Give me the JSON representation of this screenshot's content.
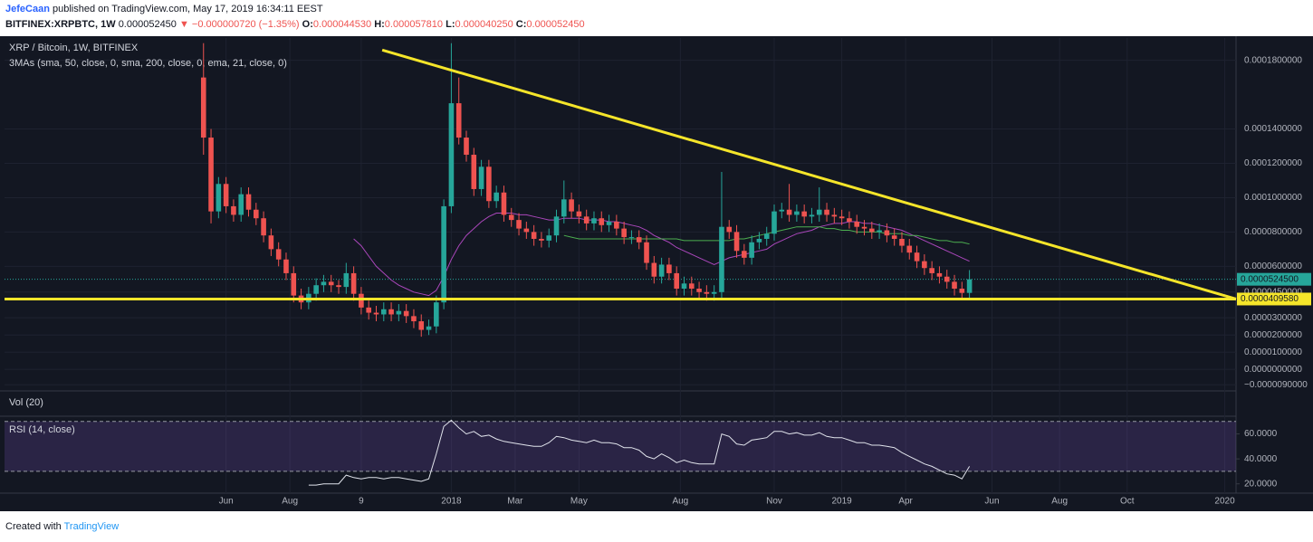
{
  "header": {
    "author": "JefeCaan",
    "byline": "published on TradingView.com, May 17, 2019 16:34:11 EEST",
    "symbol": "BITFINEX:XRPBTC, 1W",
    "last": "0.000052450",
    "change": "▼ −0.000000720 (−1.35%)",
    "ohlc": [
      {
        "key": "O:",
        "value": "0.000044530"
      },
      {
        "key": "H:",
        "value": "0.000057810"
      },
      {
        "key": "L:",
        "value": "0.000040250"
      },
      {
        "key": "C:",
        "value": "0.000052450"
      }
    ]
  },
  "footer": {
    "text": "Created with",
    "brand": "TradingView"
  },
  "chart_data": {
    "type": "candlestick",
    "title": "XRP / Bitcoin, 1W, BITFINEX",
    "ma_legend": "3MAs (sma, 50, close, 0, sma, 200, close, 0, ema, 21, close, 0)",
    "up_color": "#26a69a",
    "down_color": "#ef5350",
    "grid": true,
    "xlim": [
      -26.5,
      137.5
    ],
    "xticks": [
      {
        "value": 3,
        "label": "Jun"
      },
      {
        "value": 11.5,
        "label": "Aug"
      },
      {
        "value": 21,
        "label": "9"
      },
      {
        "value": 33,
        "label": "2018"
      },
      {
        "value": 41.5,
        "label": "Mar"
      },
      {
        "value": 50,
        "label": "May"
      },
      {
        "value": 63.5,
        "label": "Aug"
      },
      {
        "value": 76,
        "label": "Nov"
      },
      {
        "value": 85,
        "label": "2019"
      },
      {
        "value": 93.5,
        "label": "Apr"
      },
      {
        "value": 105,
        "label": "Jun"
      },
      {
        "value": 114,
        "label": "Aug"
      },
      {
        "value": 123,
        "label": "Oct"
      },
      {
        "value": 136,
        "label": "2020"
      }
    ],
    "ylim": [
      -1.15e-05,
      0.000193
    ],
    "yticks": [
      {
        "value": 0.00018,
        "label": "0.0001800000"
      },
      {
        "value": 0.00014,
        "label": "0.0001400000"
      },
      {
        "value": 0.00012,
        "label": "0.0001200000"
      },
      {
        "value": 0.0001,
        "label": "0.0001000000"
      },
      {
        "value": 8e-05,
        "label": "0.0000800000"
      },
      {
        "value": 6e-05,
        "label": "0.0000600000"
      },
      {
        "value": 4.5e-05,
        "label": "0.0000450000"
      },
      {
        "value": 3e-05,
        "label": "0.0000300000"
      },
      {
        "value": 2e-05,
        "label": "0.0000200000"
      },
      {
        "value": 1e-05,
        "label": "0.0000100000"
      },
      {
        "value": 0,
        "label": "0.0000000000"
      },
      {
        "value": -9e-06,
        "label": "−0.0000090000"
      }
    ],
    "price_labels": [
      {
        "value": 5.245e-05,
        "label": "0.0000524500",
        "color": "#26a69a"
      },
      {
        "value": 4.0958e-05,
        "label": "0.0000409580",
        "color": "#f5e52a"
      }
    ],
    "trendlines": [
      {
        "color": "#f5e52a",
        "x": [
          23.8,
          137.5
        ],
        "y": [
          0.000186,
          4.0958e-05
        ]
      },
      {
        "color": "#f5e52a",
        "x": [
          -26.5,
          137.5
        ],
        "y": [
          4.0958e-05,
          4.0958e-05
        ]
      }
    ],
    "ohlc": [
      [
        0.00017,
        0.00019,
        0.000125,
        0.000135
      ],
      [
        0.000135,
        0.00014,
        8.5e-05,
        9.2e-05
      ],
      [
        9.2e-05,
        0.000112,
        8.8e-05,
        0.000108
      ],
      [
        0.000108,
        0.000112,
        9.1e-05,
        9.5e-05
      ],
      [
        9.5e-05,
        9.9e-05,
        8.6e-05,
        9e-05
      ],
      [
        9e-05,
        0.000106,
        8.6e-05,
        0.000102
      ],
      [
        0.000102,
        0.000106,
        8.9e-05,
        9.3e-05
      ],
      [
        9.3e-05,
        9.7e-05,
        8.4e-05,
        8.8e-05
      ],
      [
        8.8e-05,
        9.2e-05,
        7.4e-05,
        7.8e-05
      ],
      [
        7.8e-05,
        8.2e-05,
        6.6e-05,
        7e-05
      ],
      [
        7e-05,
        7.4e-05,
        6e-05,
        6.4e-05
      ],
      [
        6.4e-05,
        6.8e-05,
        5.2e-05,
        5.6e-05
      ],
      [
        5.6e-05,
        6e-05,
        3.9e-05,
        4.3e-05
      ],
      [
        4.3e-05,
        4.7e-05,
        3.5e-05,
        3.9e-05
      ],
      [
        3.9e-05,
        4.8e-05,
        3.5e-05,
        4.4e-05
      ],
      [
        4.4e-05,
        5.3e-05,
        4e-05,
        4.9e-05
      ],
      [
        4.9e-05,
        5.5e-05,
        4.5e-05,
        5.1e-05
      ],
      [
        5.1e-05,
        5.5e-05,
        4.5e-05,
        4.9e-05
      ],
      [
        4.9e-05,
        5.2e-05,
        4.4e-05,
        4.8e-05
      ],
      [
        4.8e-05,
        6.2e-05,
        4.4e-05,
        5.6e-05
      ],
      [
        5.6e-05,
        6e-05,
        4e-05,
        4.4e-05
      ],
      [
        4.4e-05,
        4.8e-05,
        3.2e-05,
        3.6e-05
      ],
      [
        3.6e-05,
        4e-05,
        2.9e-05,
        3.3e-05
      ],
      [
        3.3e-05,
        3.7e-05,
        2.8e-05,
        3.2e-05
      ],
      [
        3.2e-05,
        3.9e-05,
        2.8e-05,
        3.5e-05
      ],
      [
        3.5e-05,
        3.9e-05,
        2.8e-05,
        3.2e-05
      ],
      [
        3.2e-05,
        3.8e-05,
        2.8e-05,
        3.4e-05
      ],
      [
        3.4e-05,
        3.8e-05,
        2.7e-05,
        3.1e-05
      ],
      [
        3.1e-05,
        3.5e-05,
        2.4e-05,
        2.8e-05
      ],
      [
        2.8e-05,
        3.2e-05,
        1.9e-05,
        2.3e-05
      ],
      [
        2.3e-05,
        2.9e-05,
        2e-05,
        2.5e-05
      ],
      [
        2.5e-05,
        4.3e-05,
        2.1e-05,
        3.9e-05
      ],
      [
        3.9e-05,
        9.9e-05,
        3.5e-05,
        9.5e-05
      ],
      [
        9.5e-05,
        0.00019,
        9.1e-05,
        0.000155
      ],
      [
        0.000155,
        0.00017,
        0.000131,
        0.000135
      ],
      [
        0.000135,
        0.000139,
        0.000121,
        0.000125
      ],
      [
        0.000125,
        0.000129,
        0.000101,
        0.000105
      ],
      [
        0.000105,
        0.000122,
        0.000101,
        0.000118
      ],
      [
        0.000118,
        0.000122,
        9.4e-05,
        9.8e-05
      ],
      [
        9.8e-05,
        0.000107,
        9.4e-05,
        0.000103
      ],
      [
        0.000103,
        0.000107,
        8.6e-05,
        9e-05
      ],
      [
        9e-05,
        9.4e-05,
        8.3e-05,
        8.7e-05
      ],
      [
        8.7e-05,
        9.1e-05,
        7.8e-05,
        8.2e-05
      ],
      [
        8.2e-05,
        8.6e-05,
        7.6e-05,
        8e-05
      ],
      [
        8e-05,
        8.4e-05,
        7.2e-05,
        7.6e-05
      ],
      [
        7.6e-05,
        8e-05,
        7.1e-05,
        7.5e-05
      ],
      [
        7.5e-05,
        8.2e-05,
        7.1e-05,
        7.8e-05
      ],
      [
        7.8e-05,
        9.3e-05,
        7.4e-05,
        8.9e-05
      ],
      [
        8.9e-05,
        0.00011,
        8.5e-05,
        9.9e-05
      ],
      [
        9.9e-05,
        0.000103,
        8.8e-05,
        9.2e-05
      ],
      [
        9.2e-05,
        9.6e-05,
        8.5e-05,
        8.9e-05
      ],
      [
        8.9e-05,
        9.3e-05,
        8.1e-05,
        8.5e-05
      ],
      [
        8.5e-05,
        9.2e-05,
        8.1e-05,
        8.8e-05
      ],
      [
        8.8e-05,
        9.2e-05,
        8e-05,
        8.4e-05
      ],
      [
        8.4e-05,
        9e-05,
        8e-05,
        8.6e-05
      ],
      [
        8.6e-05,
        9e-05,
        7.8e-05,
        8.2e-05
      ],
      [
        8.2e-05,
        8.6e-05,
        7.3e-05,
        7.7e-05
      ],
      [
        7.7e-05,
        8.1e-05,
        7.3e-05,
        7.7e-05
      ],
      [
        7.7e-05,
        8.1e-05,
        7e-05,
        7.4e-05
      ],
      [
        7.4e-05,
        7.8e-05,
        5.8e-05,
        6.2e-05
      ],
      [
        6.2e-05,
        6.6e-05,
        5e-05,
        5.4e-05
      ],
      [
        5.4e-05,
        6.5e-05,
        5e-05,
        6.1e-05
      ],
      [
        6.1e-05,
        6.5e-05,
        5.2e-05,
        5.6e-05
      ],
      [
        5.6e-05,
        6e-05,
        4.3e-05,
        4.7e-05
      ],
      [
        4.7e-05,
        5.4e-05,
        4.3e-05,
        5e-05
      ],
      [
        5e-05,
        5.4e-05,
        4.3e-05,
        4.7e-05
      ],
      [
        4.7e-05,
        5.1e-05,
        4.1e-05,
        4.5e-05
      ],
      [
        4.5e-05,
        4.9e-05,
        4e-05,
        4.4e-05
      ],
      [
        4.4e-05,
        4.9e-05,
        4e-05,
        4.5e-05
      ],
      [
        4.5e-05,
        0.000115,
        4.1e-05,
        8.3e-05
      ],
      [
        8.3e-05,
        8.7e-05,
        7.6e-05,
        8e-05
      ],
      [
        8e-05,
        8.4e-05,
        6.5e-05,
        6.9e-05
      ],
      [
        6.9e-05,
        7.3e-05,
        6.1e-05,
        6.5e-05
      ],
      [
        6.5e-05,
        7.8e-05,
        6.1e-05,
        7.4e-05
      ],
      [
        7.4e-05,
        8e-05,
        7e-05,
        7.6e-05
      ],
      [
        7.6e-05,
        8.3e-05,
        7.2e-05,
        7.9e-05
      ],
      [
        7.9e-05,
        9.6e-05,
        7.5e-05,
        9.2e-05
      ],
      [
        9.2e-05,
        9.7e-05,
        8.8e-05,
        9.3e-05
      ],
      [
        9.3e-05,
        0.000108,
        8.6e-05,
        9e-05
      ],
      [
        9e-05,
        9.6e-05,
        8.6e-05,
        9.2e-05
      ],
      [
        9.2e-05,
        9.6e-05,
        8.5e-05,
        8.9e-05
      ],
      [
        8.9e-05,
        9.4e-05,
        8.5e-05,
        9e-05
      ],
      [
        9e-05,
        0.000106,
        8.6e-05,
        9.3e-05
      ],
      [
        9.3e-05,
        9.7e-05,
        8.6e-05,
        9e-05
      ],
      [
        9e-05,
        9.4e-05,
        8.5e-05,
        8.9e-05
      ],
      [
        8.9e-05,
        9.3e-05,
        8.4e-05,
        8.8e-05
      ],
      [
        8.8e-05,
        9.2e-05,
        8.2e-05,
        8.6e-05
      ],
      [
        8.6e-05,
        9e-05,
        7.9e-05,
        8.3e-05
      ],
      [
        8.3e-05,
        8.7e-05,
        7.8e-05,
        8.2e-05
      ],
      [
        8.2e-05,
        8.6e-05,
        7.6e-05,
        8e-05
      ],
      [
        8e-05,
        8.5e-05,
        7.6e-05,
        8.1e-05
      ],
      [
        8.1e-05,
        8.5e-05,
        7.4e-05,
        7.8e-05
      ],
      [
        7.8e-05,
        8.2e-05,
        7.2e-05,
        7.6e-05
      ],
      [
        7.6e-05,
        8e-05,
        6.8e-05,
        7.2e-05
      ],
      [
        7.2e-05,
        7.6e-05,
        6.4e-05,
        6.8e-05
      ],
      [
        6.8e-05,
        7.2e-05,
        5.9e-05,
        6.3e-05
      ],
      [
        6.3e-05,
        6.7e-05,
        5.5e-05,
        5.9e-05
      ],
      [
        5.9e-05,
        6.3e-05,
        5.2e-05,
        5.6e-05
      ],
      [
        5.6e-05,
        6e-05,
        5e-05,
        5.4e-05
      ],
      [
        5.4e-05,
        5.8e-05,
        4.7e-05,
        5.1e-05
      ],
      [
        5.1e-05,
        5.5e-05,
        4.3e-05,
        4.7e-05
      ],
      [
        4.7e-05,
        5.1e-05,
        4.1e-05,
        4.453e-05
      ],
      [
        4.453e-05,
        5.781e-05,
        4.025e-05,
        5.245e-05
      ]
    ],
    "indicators": [
      {
        "color": "#ab47bc",
        "values": [
          null,
          null,
          null,
          null,
          null,
          null,
          null,
          null,
          null,
          null,
          null,
          null,
          null,
          null,
          null,
          null,
          null,
          null,
          null,
          null,
          7.6e-05,
          7.2e-05,
          6.6e-05,
          6e-05,
          5.6e-05,
          5.2e-05,
          4.9e-05,
          4.7e-05,
          4.5e-05,
          4.4e-05,
          4.3e-05,
          4.6e-05,
          5.4e-05,
          6.4e-05,
          7.2e-05,
          7.8e-05,
          8.2e-05,
          8.6e-05,
          8.9e-05,
          9.1e-05,
          9.1e-05,
          9.1e-05,
          9e-05,
          9e-05,
          8.9e-05,
          8.8e-05,
          8.7e-05,
          8.7e-05,
          8.8e-05,
          8.8e-05,
          8.8e-05,
          8.7e-05,
          8.7e-05,
          8.7e-05,
          8.6e-05,
          8.6e-05,
          8.5e-05,
          8.4e-05,
          8.3e-05,
          8.1e-05,
          7.8e-05,
          7.6e-05,
          7.4e-05,
          7.1e-05,
          6.9e-05,
          6.7e-05,
          6.5e-05,
          6.3e-05,
          6.1e-05,
          6.3e-05,
          6.5e-05,
          6.6e-05,
          6.7e-05,
          6.8e-05,
          6.9e-05,
          7e-05,
          7.3e-05,
          7.5e-05,
          7.7e-05,
          7.9e-05,
          8e-05,
          8.1e-05,
          8.3e-05,
          8.4e-05,
          8.5e-05,
          8.5e-05,
          8.6e-05,
          8.6e-05,
          8.5e-05,
          8.5e-05,
          8.4e-05,
          8.3e-05,
          8.2e-05,
          8.1e-05,
          7.9e-05,
          7.7e-05,
          7.5e-05,
          7.3e-05,
          7.1e-05,
          6.9e-05,
          6.7e-05,
          6.5e-05,
          6.3e-05
        ]
      },
      {
        "color": "#4caf50",
        "values": [
          null,
          null,
          null,
          null,
          null,
          null,
          null,
          null,
          null,
          null,
          null,
          null,
          null,
          null,
          null,
          null,
          null,
          null,
          null,
          null,
          null,
          null,
          null,
          null,
          null,
          null,
          null,
          null,
          null,
          null,
          null,
          null,
          null,
          null,
          null,
          null,
          null,
          null,
          null,
          null,
          null,
          null,
          null,
          null,
          null,
          null,
          null,
          null,
          7.8e-05,
          7.7e-05,
          7.6e-05,
          7.6e-05,
          7.6e-05,
          7.6e-05,
          7.6e-05,
          7.6e-05,
          7.6e-05,
          7.6e-05,
          7.6e-05,
          7.6e-05,
          7.6e-05,
          7.6e-05,
          7.6e-05,
          7.6e-05,
          7.5e-05,
          7.5e-05,
          7.5e-05,
          7.5e-05,
          7.5e-05,
          7.5e-05,
          7.5e-05,
          7.6e-05,
          7.6e-05,
          7.7e-05,
          7.8e-05,
          7.9e-05,
          8e-05,
          8.1e-05,
          8.2e-05,
          8.3e-05,
          8.3e-05,
          8.3e-05,
          8.3e-05,
          8.2e-05,
          8.2e-05,
          8.1e-05,
          8.1e-05,
          8e-05,
          8e-05,
          8e-05,
          8e-05,
          7.9e-05,
          7.9e-05,
          7.9e-05,
          7.8e-05,
          7.8e-05,
          7.7e-05,
          7.6e-05,
          7.5e-05,
          7.5e-05,
          7.4e-05,
          7.4e-05,
          7.3e-05
        ]
      }
    ],
    "volume_title": "Vol (20)",
    "rsi": {
      "title": "RSI (14, close)",
      "color": "#e0e3eb",
      "ylim": [
        14,
        72
      ],
      "bands": [
        30,
        70
      ],
      "yticks": [
        {
          "value": 60,
          "label": "60.0000"
        },
        {
          "value": 40,
          "label": "40.0000"
        },
        {
          "value": 20,
          "label": "20.0000"
        }
      ],
      "values": [
        null,
        null,
        null,
        null,
        null,
        null,
        null,
        null,
        null,
        null,
        null,
        null,
        null,
        null,
        19,
        19,
        20,
        20,
        20,
        27,
        25,
        24,
        25,
        25,
        24,
        25,
        25,
        24,
        23,
        22,
        24,
        44,
        66,
        71,
        65,
        60,
        62,
        58,
        59,
        56,
        54,
        53,
        52,
        51,
        50,
        50,
        53,
        58,
        57,
        55,
        54,
        53,
        55,
        53,
        53,
        52,
        49,
        49,
        47,
        42,
        40,
        44,
        41,
        37,
        39,
        37,
        36,
        36,
        36,
        60,
        58,
        52,
        51,
        55,
        56,
        57,
        62,
        62,
        60,
        61,
        59,
        59,
        61,
        58,
        57,
        57,
        55,
        53,
        53,
        51,
        51,
        50,
        49,
        45,
        42,
        39,
        36,
        34,
        31,
        28,
        27,
        24,
        34
      ]
    }
  }
}
